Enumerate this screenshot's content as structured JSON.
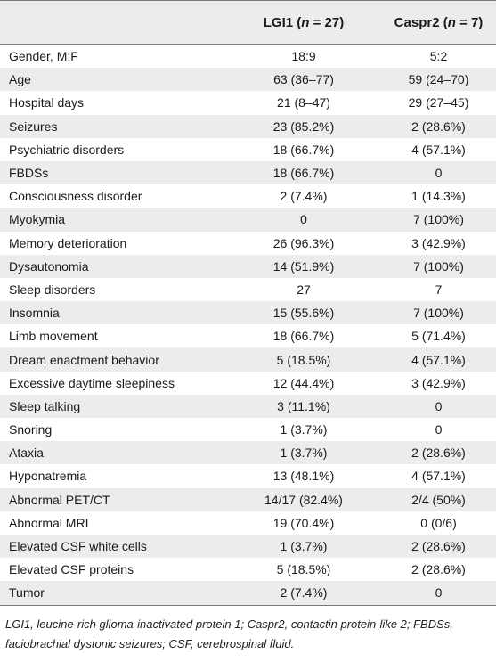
{
  "table": {
    "header": {
      "col1": "",
      "col2": "LGI1 (n = 27)",
      "col3": "Caspr2 (n = 7)"
    },
    "rows": [
      {
        "label": "Gender, M:F",
        "lgi1": "18:9",
        "caspr2": "5:2"
      },
      {
        "label": "Age",
        "lgi1": "63 (36–77)",
        "caspr2": "59 (24–70)"
      },
      {
        "label": "Hospital days",
        "lgi1": "21 (8–47)",
        "caspr2": "29 (27–45)"
      },
      {
        "label": "Seizures",
        "lgi1": "23 (85.2%)",
        "caspr2": "2 (28.6%)"
      },
      {
        "label": "Psychiatric disorders",
        "lgi1": "18 (66.7%)",
        "caspr2": "4 (57.1%)"
      },
      {
        "label": "FBDSs",
        "lgi1": "18 (66.7%)",
        "caspr2": "0"
      },
      {
        "label": "Consciousness disorder",
        "lgi1": "2 (7.4%)",
        "caspr2": "1 (14.3%)"
      },
      {
        "label": "Myokymia",
        "lgi1": "0",
        "caspr2": "7 (100%)"
      },
      {
        "label": "Memory deterioration",
        "lgi1": "26 (96.3%)",
        "caspr2": "3 (42.9%)"
      },
      {
        "label": "Dysautonomia",
        "lgi1": "14 (51.9%)",
        "caspr2": "7 (100%)"
      },
      {
        "label": "Sleep disorders",
        "lgi1": "27",
        "caspr2": "7"
      },
      {
        "label": "Insomnia",
        "lgi1": "15 (55.6%)",
        "caspr2": "7 (100%)"
      },
      {
        "label": "Limb movement",
        "lgi1": "18 (66.7%)",
        "caspr2": "5 (71.4%)"
      },
      {
        "label": "Dream enactment behavior",
        "lgi1": "5 (18.5%)",
        "caspr2": "4 (57.1%)"
      },
      {
        "label": "Excessive daytime sleepiness",
        "lgi1": "12 (44.4%)",
        "caspr2": "3 (42.9%)"
      },
      {
        "label": "Sleep talking",
        "lgi1": "3 (11.1%)",
        "caspr2": "0"
      },
      {
        "label": "Snoring",
        "lgi1": "1 (3.7%)",
        "caspr2": "0"
      },
      {
        "label": "Ataxia",
        "lgi1": "1 (3.7%)",
        "caspr2": "2 (28.6%)"
      },
      {
        "label": "Hyponatremia",
        "lgi1": "13 (48.1%)",
        "caspr2": "4 (57.1%)"
      },
      {
        "label": "Abnormal PET/CT",
        "lgi1": "14/17 (82.4%)",
        "caspr2": "2/4 (50%)"
      },
      {
        "label": "Abnormal MRI",
        "lgi1": "19 (70.4%)",
        "caspr2": "0 (0/6)"
      },
      {
        "label": "Elevated CSF white cells",
        "lgi1": "1 (3.7%)",
        "caspr2": "2 (28.6%)"
      },
      {
        "label": "Elevated CSF proteins",
        "lgi1": "5 (18.5%)",
        "caspr2": "2 (28.6%)"
      },
      {
        "label": "Tumor",
        "lgi1": "2 (7.4%)",
        "caspr2": "0"
      }
    ],
    "footnote_line1": "LGI1, leucine-rich glioma-inactivated protein 1; Caspr2, contactin protein-like 2; FBDSs,",
    "footnote_line2": "faciobrachial dystonic seizures; CSF, cerebrospinal fluid."
  }
}
